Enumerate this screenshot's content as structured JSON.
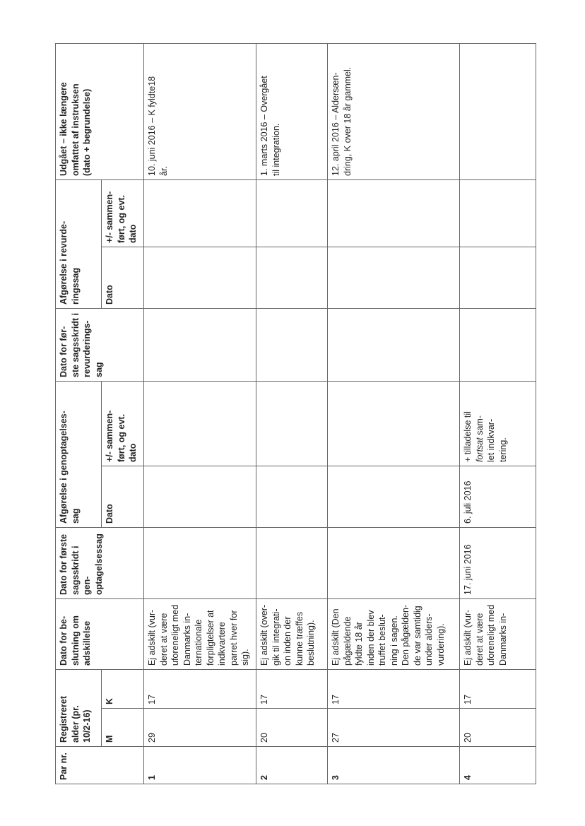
{
  "headers": {
    "par_nr": "Par nr.",
    "alder": "Registreret\nalder (pr.\n10/2-16)",
    "m": "M",
    "k": "K",
    "beslutning": "Dato for be-\nslutning om\nadskillelse",
    "foerste_gen": "Dato for første\nsagsskridt i gen-\noptagelsessag",
    "afg_gen": "Afgørelse i genoptagelses-\nsag",
    "afg_gen_dato": "Dato",
    "afg_gen_sammen": "+/- sammen-\nført, og evt.\ndato",
    "foerste_rev": "Dato for før-\nste sagsskridt i\nrevurderings-\nsag",
    "afg_rev": "Afgørelse i revurde-\nringssag",
    "afg_rev_dato": "Dato",
    "afg_rev_sammen": "+/- sammen-\nført, og evt.\ndato",
    "udgaaet": "Udgået – ikke længere\nomfattet af instruksen\n(dato + begrundelse)"
  },
  "rows": [
    {
      "nr": "1",
      "m": "29",
      "k": "17",
      "beslutning": "Ej adskilt (vur-\nderet at være\nuforeneligt med\nDanmarks in-\nternationale\nforpligtelser at\nindkvartere\nparret hver for\nsig).",
      "foerste_gen": "",
      "gen_dato": "",
      "gen_sammen_a": "",
      "gen_sammen_i": "",
      "gen_sammen_b": "",
      "foerste_rev": "",
      "rev_dato": "",
      "rev_sammen": "",
      "udgaaet": "10. juni 2016 – K fyldte18\når."
    },
    {
      "nr": "2",
      "m": "20",
      "k": "17",
      "beslutning": "Ej adskilt (over-\ngik til integrati-\non inden der\nkunne træffes\nbeslutning).",
      "foerste_gen": "",
      "gen_dato": "",
      "gen_sammen_a": "",
      "gen_sammen_i": "",
      "gen_sammen_b": "",
      "foerste_rev": "",
      "rev_dato": "",
      "rev_sammen": "",
      "udgaaet": "1. marts 2016 – Overgået\ntil integration."
    },
    {
      "nr": "3",
      "m": "27",
      "k": "17",
      "beslutning": "Ej adskilt (Den\npågældende\nfyldte 18 år\ninden der blev\ntruffet beslut-\nning i sagen.\nDen pågælden-\nde var samtidig\nunder alders-\nvurdering).",
      "foerste_gen": "",
      "gen_dato": "",
      "gen_sammen_a": "",
      "gen_sammen_i": "",
      "gen_sammen_b": "",
      "foerste_rev": "",
      "rev_dato": "",
      "rev_sammen": "",
      "udgaaet": "12. april 2016 – Aldersæn-\ndring, K over 18 år gammel."
    },
    {
      "nr": "4",
      "m": "20",
      "k": "17",
      "beslutning": "Ej adskilt (vur-\nderet at være\nuforeneligt med\nDanmarks in-",
      "foerste_gen": "17. juni 2016",
      "gen_dato": "6. juli 2016",
      "gen_sammen_a": "+ tilladelse til\n",
      "gen_sammen_i": "fortsat",
      "gen_sammen_b": " sam-\nlet indkvar-\ntering.",
      "foerste_rev": "",
      "rev_dato": "",
      "rev_sammen": "",
      "udgaaet": ""
    }
  ]
}
